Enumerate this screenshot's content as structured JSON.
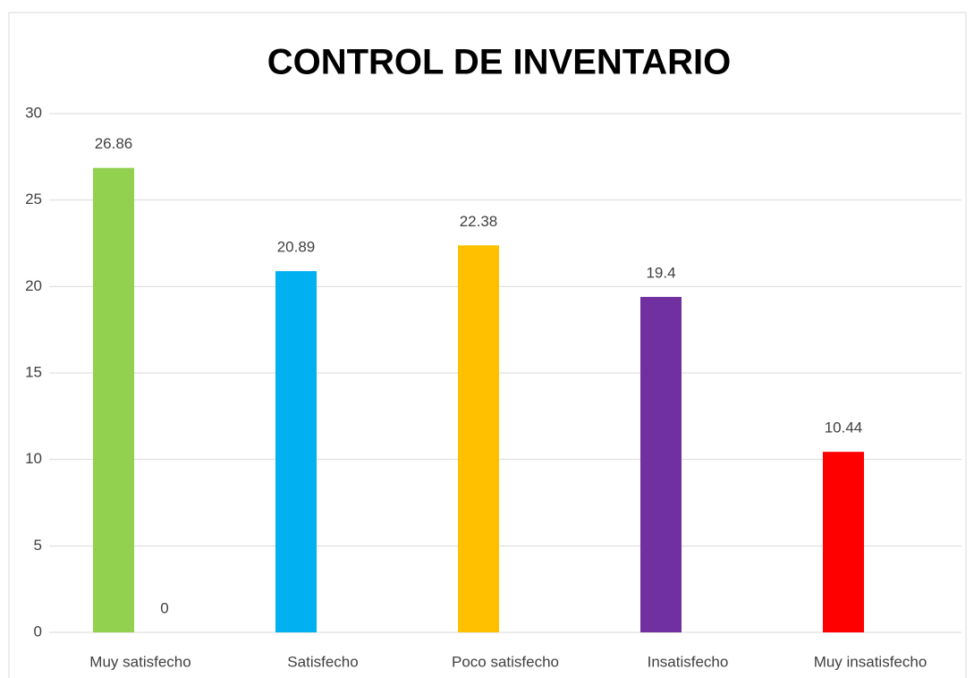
{
  "chart_data": {
    "type": "bar",
    "title": "CONTROL DE INVENTARIO",
    "categories": [
      "Muy satisfecho",
      "Satisfecho",
      "Poco satisfecho",
      "Insatisfecho",
      "Muy insatisfecho"
    ],
    "series": [
      {
        "colors": [
          "#92d050",
          "#00b0f0",
          "#ffc000",
          "#7030a0",
          "#ff0000"
        ],
        "values": [
          26.86,
          20.89,
          22.38,
          19.4,
          10.44
        ]
      },
      {
        "color": "#a5a5a5",
        "values": [
          0,
          null,
          null,
          null,
          null
        ]
      }
    ],
    "ylim": [
      0,
      30
    ],
    "yticks": [
      0,
      5,
      10,
      15,
      20,
      25,
      30
    ],
    "grid": true,
    "data_labels": true
  }
}
